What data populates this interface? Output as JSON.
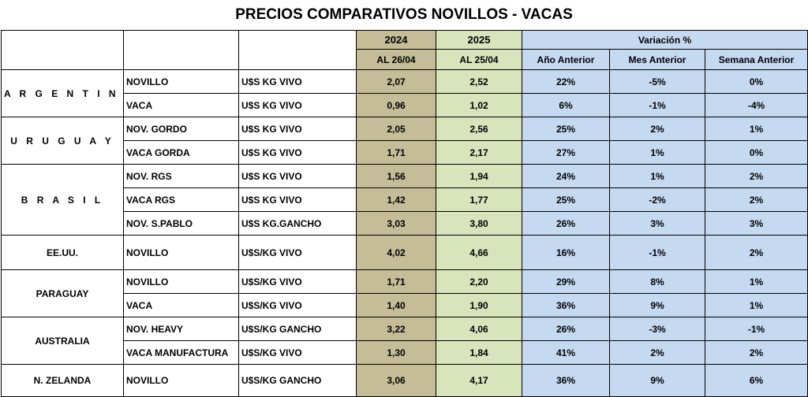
{
  "title": "PRECIOS COMPARATIVOS NOVILLOS - VACAS",
  "colors": {
    "y2024": "#c4bd97",
    "y2025": "#d8e4bc",
    "variation": "#c5d9f1"
  },
  "header": {
    "year_2024": "2024",
    "year_2025": "2025",
    "date_2024": "AL 26/04",
    "date_2025": "AL 25/04",
    "variation": "Variación %",
    "col_year": "Año Anterior",
    "col_month": "Mes Anterior",
    "col_week": "Semana Anterior"
  },
  "rows": [
    {
      "country": "A R G E N T I N A",
      "category": "NOVILLO",
      "unit": "U$S KG VIVO",
      "p2024": "2,07",
      "p2025": "2,52",
      "var_year": "22%",
      "var_month": "-5%",
      "var_week": "0%"
    },
    {
      "country": "",
      "category": "VACA",
      "unit": "U$S KG VIVO",
      "p2024": "0,96",
      "p2025": "1,02",
      "var_year": "6%",
      "var_month": "-1%",
      "var_week": "-4%"
    },
    {
      "country": "U R U G U A Y",
      "category": "NOV. GORDO",
      "unit": "U$S KG VIVO",
      "p2024": "2,05",
      "p2025": "2,56",
      "var_year": "25%",
      "var_month": "2%",
      "var_week": "1%"
    },
    {
      "country": "",
      "category": "VACA GORDA",
      "unit": "U$S KG VIVO",
      "p2024": "1,71",
      "p2025": "2,17",
      "var_year": "27%",
      "var_month": "1%",
      "var_week": "0%"
    },
    {
      "country": "B R A S I L",
      "category": "NOV. RGS",
      "unit": "U$S KG VIVO",
      "p2024": "1,56",
      "p2025": "1,94",
      "var_year": "24%",
      "var_month": "1%",
      "var_week": "2%"
    },
    {
      "country": "",
      "category": "VACA RGS",
      "unit": "U$S KG VIVO",
      "p2024": "1,42",
      "p2025": "1,77",
      "var_year": "25%",
      "var_month": "-2%",
      "var_week": "2%"
    },
    {
      "country": "",
      "category": "NOV. S.PABLO",
      "unit": "U$S KG.GANCHO",
      "p2024": "3,03",
      "p2025": "3,80",
      "var_year": "26%",
      "var_month": "3%",
      "var_week": "3%"
    },
    {
      "country": "EE.UU.",
      "category": "NOVILLO",
      "unit": "U$S/KG VIVO",
      "p2024": "4,02",
      "p2025": "4,66",
      "var_year": "16%",
      "var_month": "-1%",
      "var_week": "2%"
    },
    {
      "country": "PARAGUAY",
      "category": "NOVILLO",
      "unit": "U$S/KG VIVO",
      "p2024": "1,71",
      "p2025": "2,20",
      "var_year": "29%",
      "var_month": "8%",
      "var_week": "1%"
    },
    {
      "country": "",
      "category": "VACA",
      "unit": "U$S/KG VIVO",
      "p2024": "1,40",
      "p2025": "1,90",
      "var_year": "36%",
      "var_month": "9%",
      "var_week": "1%"
    },
    {
      "country": "AUSTRALIA",
      "category": "NOV. HEAVY",
      "unit": "U$S/KG GANCHO",
      "p2024": "3,22",
      "p2025": "4,06",
      "var_year": "26%",
      "var_month": "-3%",
      "var_week": "-1%"
    },
    {
      "country": "",
      "category": "VACA MANUFACTURA",
      "unit": "U$S/KG VIVO",
      "p2024": "1,30",
      "p2025": "1,84",
      "var_year": "41%",
      "var_month": "2%",
      "var_week": "2%"
    },
    {
      "country": "N. ZELANDA",
      "category": "NOVILLO",
      "unit": "U$S/KG GANCHO",
      "p2024": "3,06",
      "p2025": "4,17",
      "var_year": "36%",
      "var_month": "9%",
      "var_week": "6%"
    }
  ]
}
